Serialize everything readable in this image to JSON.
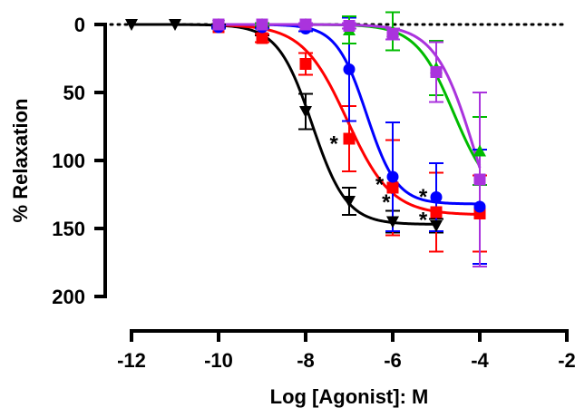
{
  "chart_data": {
    "type": "scatter",
    "xlabel": "Log [Agonist]: M",
    "ylabel": "% Relaxation",
    "xlim": [
      -12,
      -2
    ],
    "ylim": [
      0,
      200
    ],
    "y_inverted": true,
    "xticks": [
      -12,
      -10,
      -8,
      -6,
      -4,
      -2
    ],
    "yticks": [
      0,
      50,
      100,
      150,
      200
    ],
    "baseline_dotted_at": 0,
    "grid": false,
    "legend": "none",
    "series": [
      {
        "color": "#000000",
        "marker": "triangle-down",
        "x": [
          -12,
          -11,
          -10,
          -9,
          -8,
          -7,
          -6,
          -5
        ],
        "y": [
          0,
          0,
          1,
          5,
          64,
          130,
          145,
          148
        ],
        "err": [
          0,
          0,
          1,
          3,
          13,
          10,
          8,
          5
        ],
        "curve": {
          "bottom": 0,
          "top": 147,
          "logEC50": -7.85,
          "hill": 1.1
        }
      },
      {
        "color": "#ff0000",
        "marker": "square",
        "x": [
          -10,
          -9,
          -8,
          -7,
          -6,
          -5,
          -4
        ],
        "y": [
          2,
          10,
          29,
          84,
          120,
          138,
          139
        ],
        "err": [
          1,
          3,
          8,
          24,
          35,
          29,
          28
        ],
        "curve": {
          "bottom": 0,
          "top": 140,
          "logEC50": -7.05,
          "hill": 0.85
        }
      },
      {
        "color": "#0000ff",
        "marker": "circle",
        "x": [
          -10,
          -9,
          -8,
          -7,
          -6,
          -5,
          -4
        ],
        "y": [
          2,
          2,
          3,
          33,
          112,
          127,
          134
        ],
        "err": [
          1,
          1,
          2,
          38,
          40,
          25,
          42
        ],
        "curve": {
          "bottom": 0,
          "top": 132,
          "logEC50": -6.6,
          "hill": 1.25
        }
      },
      {
        "color": "#00bb00",
        "marker": "triangle-up",
        "x": [
          -10,
          -9,
          -8,
          -7,
          -6,
          -5,
          -4
        ],
        "y": [
          0,
          0,
          0,
          4,
          5,
          32,
          93
        ],
        "err": [
          0,
          1,
          1,
          10,
          14,
          20,
          25
        ],
        "curve": {
          "bottom": 0,
          "top": 130,
          "logEC50": -4.6,
          "hill": 1.0
        }
      },
      {
        "color": "#aa33dd",
        "marker": "square",
        "x": [
          -10,
          -9,
          -8,
          -7,
          -6,
          -5,
          -4
        ],
        "y": [
          0,
          0,
          0,
          1,
          7,
          35,
          114
        ],
        "err": [
          0,
          0,
          1,
          2,
          4,
          22,
          64
        ],
        "curve": {
          "bottom": 0,
          "top": 190,
          "logEC50": -4.1,
          "hill": 0.95
        }
      }
    ],
    "annotations": [
      {
        "text": "*",
        "x": -7.35,
        "y": 85
      },
      {
        "text": "*",
        "x": -6.3,
        "y": 115
      },
      {
        "text": "*",
        "x": -6.15,
        "y": 128
      },
      {
        "text": "*",
        "x": -5.3,
        "y": 124
      },
      {
        "text": "*",
        "x": -5.3,
        "y": 141
      }
    ]
  }
}
